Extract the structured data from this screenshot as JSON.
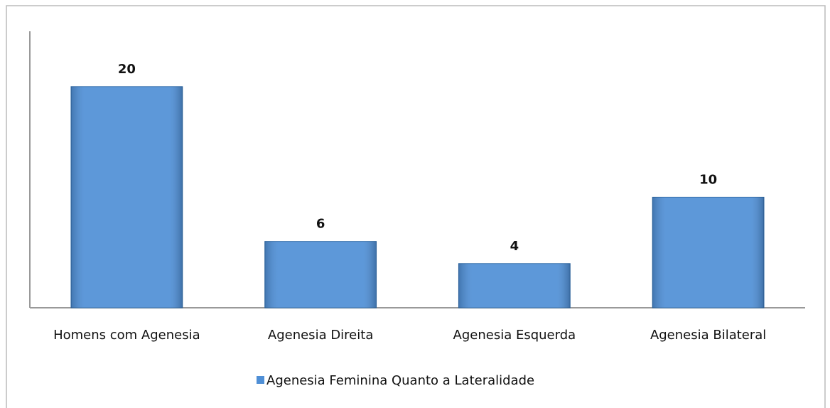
{
  "chart_data": {
    "type": "bar",
    "categories": [
      "Homens com Agenesia",
      "Agenesia Direita",
      "Agenesia Esquerda",
      "Agenesia Bilateral"
    ],
    "series": [
      {
        "name": "Agenesia Feminina Quanto a Lateralidade",
        "color": "#4f8fd6",
        "values": [
          20,
          6,
          4,
          10
        ]
      }
    ],
    "ylim": [
      0,
      25
    ]
  }
}
